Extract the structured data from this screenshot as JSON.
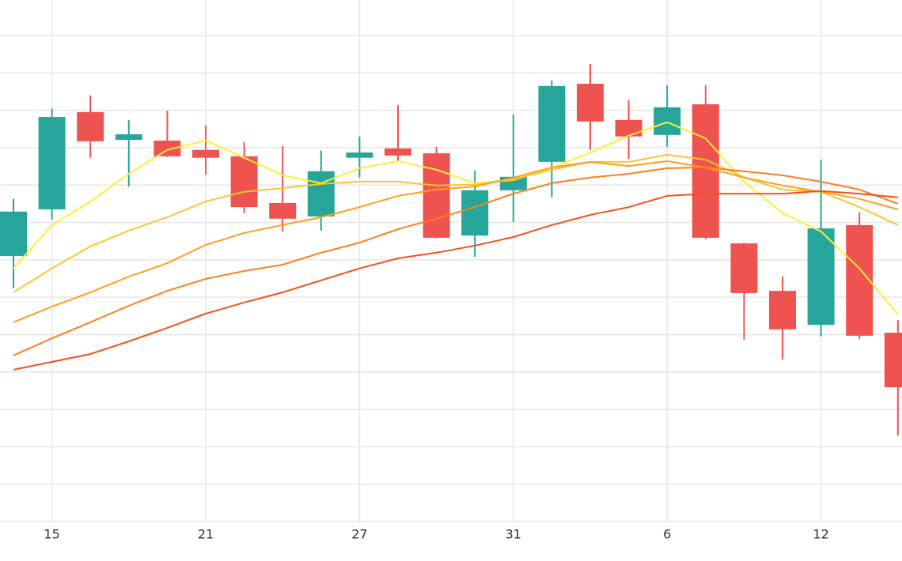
{
  "chart_data": {
    "type": "candlestick",
    "categories": [
      null,
      "15",
      null,
      null,
      null,
      "21",
      null,
      null,
      null,
      "27",
      null,
      null,
      null,
      "31",
      null,
      null,
      null,
      "6",
      null,
      null,
      null,
      "12",
      null,
      null
    ],
    "open": [
      7.1,
      8.35,
      10.95,
      10.21,
      10.19,
      9.94,
      9.77,
      8.52,
      8.16,
      9.73,
      9.98,
      9.85,
      7.65,
      8.86,
      9.62,
      11.71,
      10.74,
      10.34,
      11.16,
      7.44,
      6.17,
      5.26,
      7.93,
      5.05
    ],
    "high": [
      8.63,
      11.04,
      11.4,
      10.74,
      10.99,
      10.59,
      10.15,
      10.04,
      9.92,
      10.3,
      11.14,
      10.02,
      9.39,
      10.89,
      11.8,
      12.24,
      11.27,
      11.67,
      11.67,
      7.46,
      6.55,
      9.68,
      8.27,
      5.39
    ],
    "low": [
      6.24,
      8.08,
      9.73,
      8.96,
      9.75,
      9.28,
      8.25,
      7.76,
      7.78,
      9.2,
      9.66,
      7.57,
      7.08,
      8.01,
      8.67,
      9.94,
      9.7,
      10.02,
      7.55,
      4.86,
      4.33,
      4.95,
      4.88,
      2.3
    ],
    "close": [
      8.29,
      10.82,
      10.17,
      10.36,
      9.77,
      9.73,
      8.41,
      8.1,
      9.37,
      9.87,
      9.79,
      7.59,
      8.86,
      9.22,
      11.65,
      10.7,
      10.3,
      11.08,
      7.59,
      6.11,
      5.14,
      7.84,
      4.97,
      3.59
    ],
    "up_color": "#26a69a",
    "down_color": "#ef5350",
    "lines": [
      {
        "color": "#ffee33",
        "values": [
          6.77,
          7.93,
          8.56,
          9.3,
          9.94,
          10.19,
          9.73,
          9.26,
          9.05,
          9.45,
          9.64,
          9.41,
          9.05,
          9.13,
          9.47,
          9.87,
          10.32,
          10.68,
          10.25,
          9.09,
          8.25,
          7.76,
          6.77,
          5.54
        ]
      },
      {
        "color": "#fbc531",
        "values": [
          6.13,
          6.77,
          7.36,
          7.78,
          8.14,
          8.56,
          8.82,
          8.92,
          9.03,
          9.09,
          9.09,
          8.99,
          9.01,
          9.15,
          9.41,
          9.62,
          9.62,
          9.81,
          9.68,
          9.2,
          8.88,
          8.82,
          8.41,
          7.93
        ]
      },
      {
        "color": "#ff9f1c",
        "values": [
          5.33,
          5.75,
          6.13,
          6.55,
          6.91,
          7.4,
          7.72,
          7.93,
          8.14,
          8.41,
          8.71,
          8.88,
          8.96,
          9.2,
          9.47,
          9.62,
          9.51,
          9.64,
          9.47,
          9.2,
          8.99,
          8.82,
          8.63,
          8.35
        ]
      },
      {
        "color": "#ff7f1e",
        "values": [
          4.44,
          4.9,
          5.33,
          5.77,
          6.17,
          6.49,
          6.7,
          6.87,
          7.19,
          7.46,
          7.82,
          8.1,
          8.41,
          8.77,
          9.05,
          9.2,
          9.3,
          9.45,
          9.47,
          9.37,
          9.26,
          9.09,
          8.88,
          8.5
        ]
      },
      {
        "color": "#f4511e",
        "values": [
          4.06,
          4.27,
          4.48,
          4.82,
          5.18,
          5.56,
          5.86,
          6.13,
          6.45,
          6.77,
          7.04,
          7.19,
          7.38,
          7.61,
          7.93,
          8.2,
          8.41,
          8.71,
          8.77,
          8.77,
          8.77,
          8.84,
          8.77,
          8.67
        ]
      }
    ],
    "ylim": [
      0,
      13.95
    ],
    "yticks": [
      0,
      1,
      2,
      3,
      4,
      5,
      6,
      7,
      8,
      9,
      10,
      11,
      12,
      13
    ],
    "grid": true
  }
}
